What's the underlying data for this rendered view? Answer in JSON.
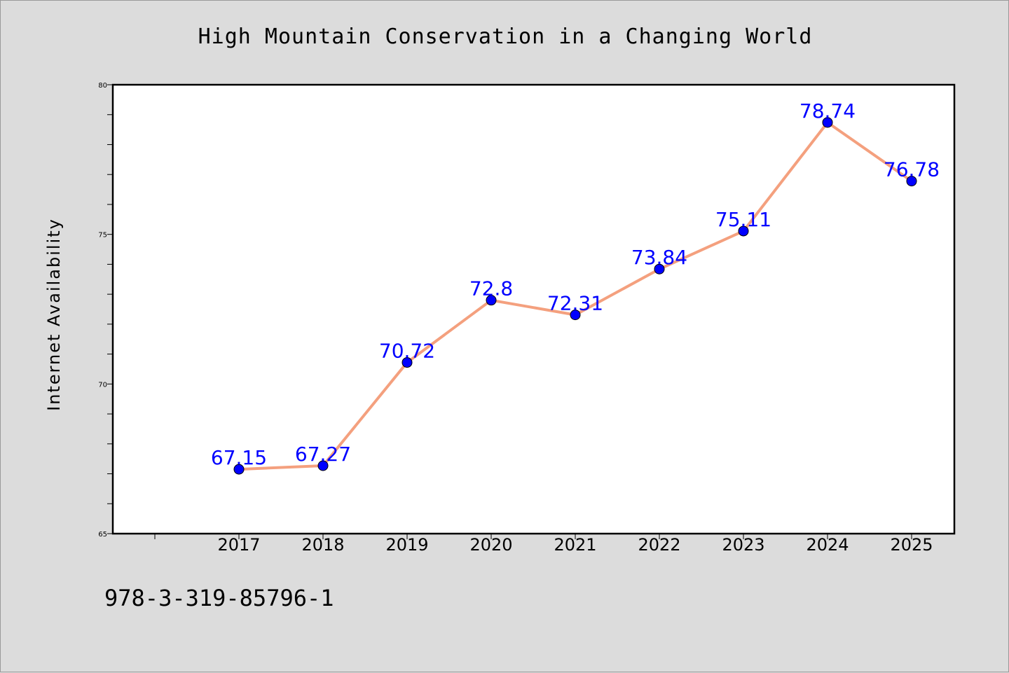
{
  "chart_data": {
    "type": "line",
    "title": "High Mountain Conservation in a Changing World",
    "xlabel": "",
    "ylabel": "Internet Availability",
    "categories": [
      "2017",
      "2018",
      "2019",
      "2020",
      "2021",
      "2022",
      "2023",
      "2024",
      "2025"
    ],
    "series": [
      {
        "values": [
          67.15,
          67.27,
          70.72,
          72.8,
          72.31,
          73.84,
          75.11,
          78.74,
          76.78
        ],
        "labels": [
          "67.15",
          "67.27",
          "70.72",
          "72.8",
          "72.31",
          "73.84",
          "75.11",
          "78.74",
          "76.78"
        ],
        "line_color": "#f4a07e",
        "marker_color": "#0000ff"
      }
    ],
    "ylim": [
      65,
      80
    ],
    "yticks": [
      "65",
      "70",
      "75",
      "80"
    ],
    "grid": false,
    "legend": "none",
    "data_label_color": "#0000ff"
  },
  "footer": {
    "isbn": "978-3-319-85796-1"
  }
}
